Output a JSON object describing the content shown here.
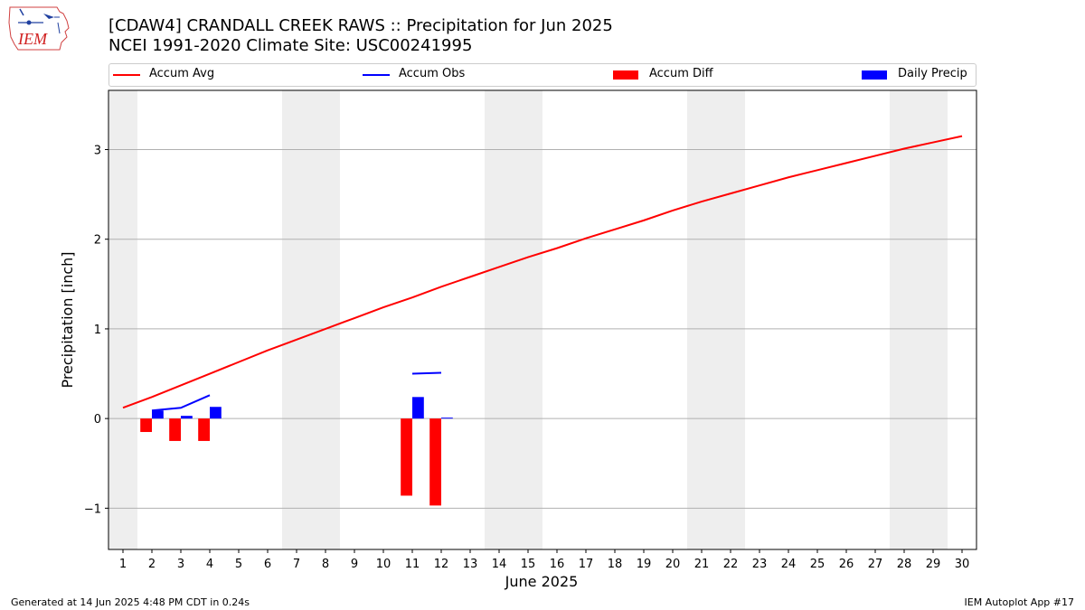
{
  "header": {
    "title_line1": "[CDAW4] CRANDALL CREEK RAWS :: Precipitation for Jun 2025",
    "title_line2": "NCEI 1991-2020 Climate Site: USC00241995",
    "logo_text": "IEM"
  },
  "footer": {
    "left": "Generated at 14 Jun 2025 4:48 PM CDT in 0.24s",
    "right": "IEM Autoplot App #17"
  },
  "colors": {
    "avg": "#ff0000",
    "obs": "#0000ff",
    "diff": "#ff0000",
    "daily": "#0000ff",
    "weekend": "#eeeeee",
    "grid": "#b0b0b0"
  },
  "legend": {
    "items": [
      {
        "label": "Accum Avg",
        "kind": "line",
        "color": "#ff0000"
      },
      {
        "label": "Accum Obs",
        "kind": "line",
        "color": "#0000ff"
      },
      {
        "label": "Accum Diff",
        "kind": "patch",
        "color": "#ff0000"
      },
      {
        "label": "Daily Precip",
        "kind": "patch",
        "color": "#0000ff"
      }
    ],
    "placement": "top, above plot"
  },
  "chart_data": {
    "type": "bar",
    "xlabel": "June 2025",
    "ylabel": "Precipitation [inch]",
    "xlim": [
      0.5,
      30.5
    ],
    "ylim": [
      -1.46,
      3.66
    ],
    "xticks": [
      1,
      2,
      3,
      4,
      5,
      6,
      7,
      8,
      9,
      10,
      11,
      12,
      13,
      14,
      15,
      16,
      17,
      18,
      19,
      20,
      21,
      22,
      23,
      24,
      25,
      26,
      27,
      28,
      29,
      30
    ],
    "yticks": [
      -1,
      0,
      1,
      2,
      3
    ],
    "grid": "horizontal",
    "weekend_days": [
      1,
      7,
      8,
      14,
      15,
      21,
      22,
      28,
      29
    ],
    "series": [
      {
        "name": "Accum Avg",
        "kind": "line",
        "x": [
          1,
          2,
          3,
          4,
          5,
          6,
          7,
          8,
          9,
          10,
          11,
          12,
          13,
          14,
          15,
          16,
          17,
          18,
          19,
          20,
          21,
          22,
          23,
          24,
          25,
          26,
          27,
          28,
          29,
          30
        ],
        "values": [
          0.12,
          0.24,
          0.37,
          0.5,
          0.63,
          0.76,
          0.88,
          1.0,
          1.12,
          1.24,
          1.35,
          1.47,
          1.58,
          1.69,
          1.8,
          1.9,
          2.01,
          2.11,
          2.21,
          2.32,
          2.42,
          2.51,
          2.6,
          2.69,
          2.77,
          2.85,
          2.93,
          3.01,
          3.08,
          3.15
        ]
      },
      {
        "name": "Accum Obs",
        "kind": "line",
        "x": [
          2,
          3,
          4,
          11,
          12
        ],
        "values": [
          0.09,
          0.12,
          0.26,
          0.5,
          0.51
        ],
        "breaks_after": [
          4
        ]
      },
      {
        "name": "Accum Diff",
        "kind": "bar",
        "x": [
          2,
          3,
          4,
          11,
          12
        ],
        "values": [
          -0.15,
          -0.25,
          -0.25,
          -0.86,
          -0.97
        ]
      },
      {
        "name": "Daily Precip",
        "kind": "bar",
        "x": [
          2,
          3,
          4,
          11,
          12
        ],
        "values": [
          0.09,
          0.03,
          0.13,
          0.24,
          0.01
        ]
      }
    ]
  }
}
